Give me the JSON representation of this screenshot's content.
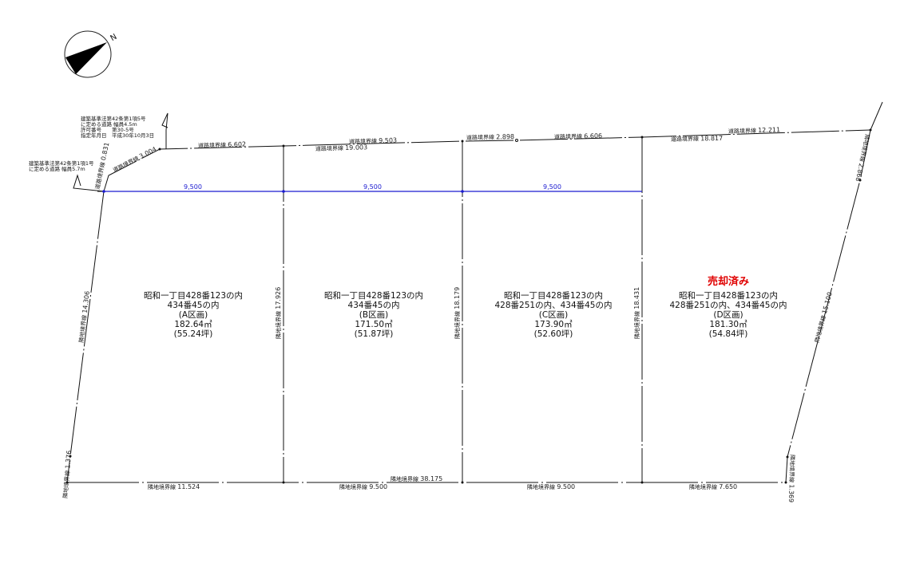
{
  "compass": {
    "label": "N"
  },
  "notes": {
    "road_upper": [
      "建築基準法第42条第1項5号",
      "に定める道路 幅員4.5m",
      "許可番号　　第30-5号",
      "指定年月日　平成30年10月3日"
    ],
    "road_left": [
      "建築基準法第42条第1項1号",
      "に定める道路 幅員5.7m"
    ]
  },
  "road_lines": [
    {
      "label": "道路境界線",
      "value": "0.831"
    },
    {
      "label": "道路境界線",
      "value": "3.004"
    },
    {
      "label": "道路境界線",
      "value": "6.602"
    },
    {
      "label": "道路境界線",
      "value": "9.503"
    },
    {
      "label": "道路境界線",
      "value": "19.003"
    },
    {
      "label": "道路境界線",
      "value": "2.898"
    },
    {
      "label": "道路境界線",
      "value": "6.606"
    },
    {
      "label": "道路境界線",
      "value": "18.817"
    },
    {
      "label": "道路境界線",
      "value": "12.211"
    }
  ],
  "neighbor_lines": [
    {
      "label": "隣地境界線",
      "value": "14.306"
    },
    {
      "label": "隣地境界線",
      "value": "1.376"
    },
    {
      "label": "隣地境界線",
      "value": "17.926"
    },
    {
      "label": "隣地境界線",
      "value": "18.179"
    },
    {
      "label": "隣地境界線",
      "value": "18.431"
    },
    {
      "label": "隣地境界線",
      "value": "2.868"
    },
    {
      "label": "隣地境界線",
      "value": "15.100"
    },
    {
      "label": "隣地境界線",
      "value": "1.369"
    },
    {
      "label": "隣地境界線",
      "value": "11.524"
    },
    {
      "label": "隣地境界線",
      "value": "9.500"
    },
    {
      "label": "隣地境界線",
      "value": "38.175"
    },
    {
      "label": "隣地境界線",
      "value": "9.500"
    },
    {
      "label": "隣地境界線",
      "value": "7.650"
    }
  ],
  "setback_dims": [
    "9,500",
    "9,500",
    "9,500"
  ],
  "line_color_setback": "#1a1ad0",
  "sold_color": "#e00000",
  "lots": [
    {
      "lines": [
        "昭和一丁目428番123の内",
        "434番45の内",
        "(A区画)",
        "182.64㎡",
        "(55.24坪)"
      ],
      "status": ""
    },
    {
      "lines": [
        "昭和一丁目428番123の内",
        "434番45の内",
        "(B区画)",
        "171.50㎡",
        "(51.87坪)"
      ],
      "status": ""
    },
    {
      "lines": [
        "昭和一丁目428番123の内",
        "428番251の内、434番45の内",
        "(C区画)",
        "173.90㎡",
        "(52.60坪)"
      ],
      "status": ""
    },
    {
      "lines": [
        "昭和一丁目428番123の内",
        "428番251の内、434番45の内",
        "(D区画)",
        "181.30㎡",
        "(54.84坪)"
      ],
      "status": "売却済み"
    }
  ]
}
